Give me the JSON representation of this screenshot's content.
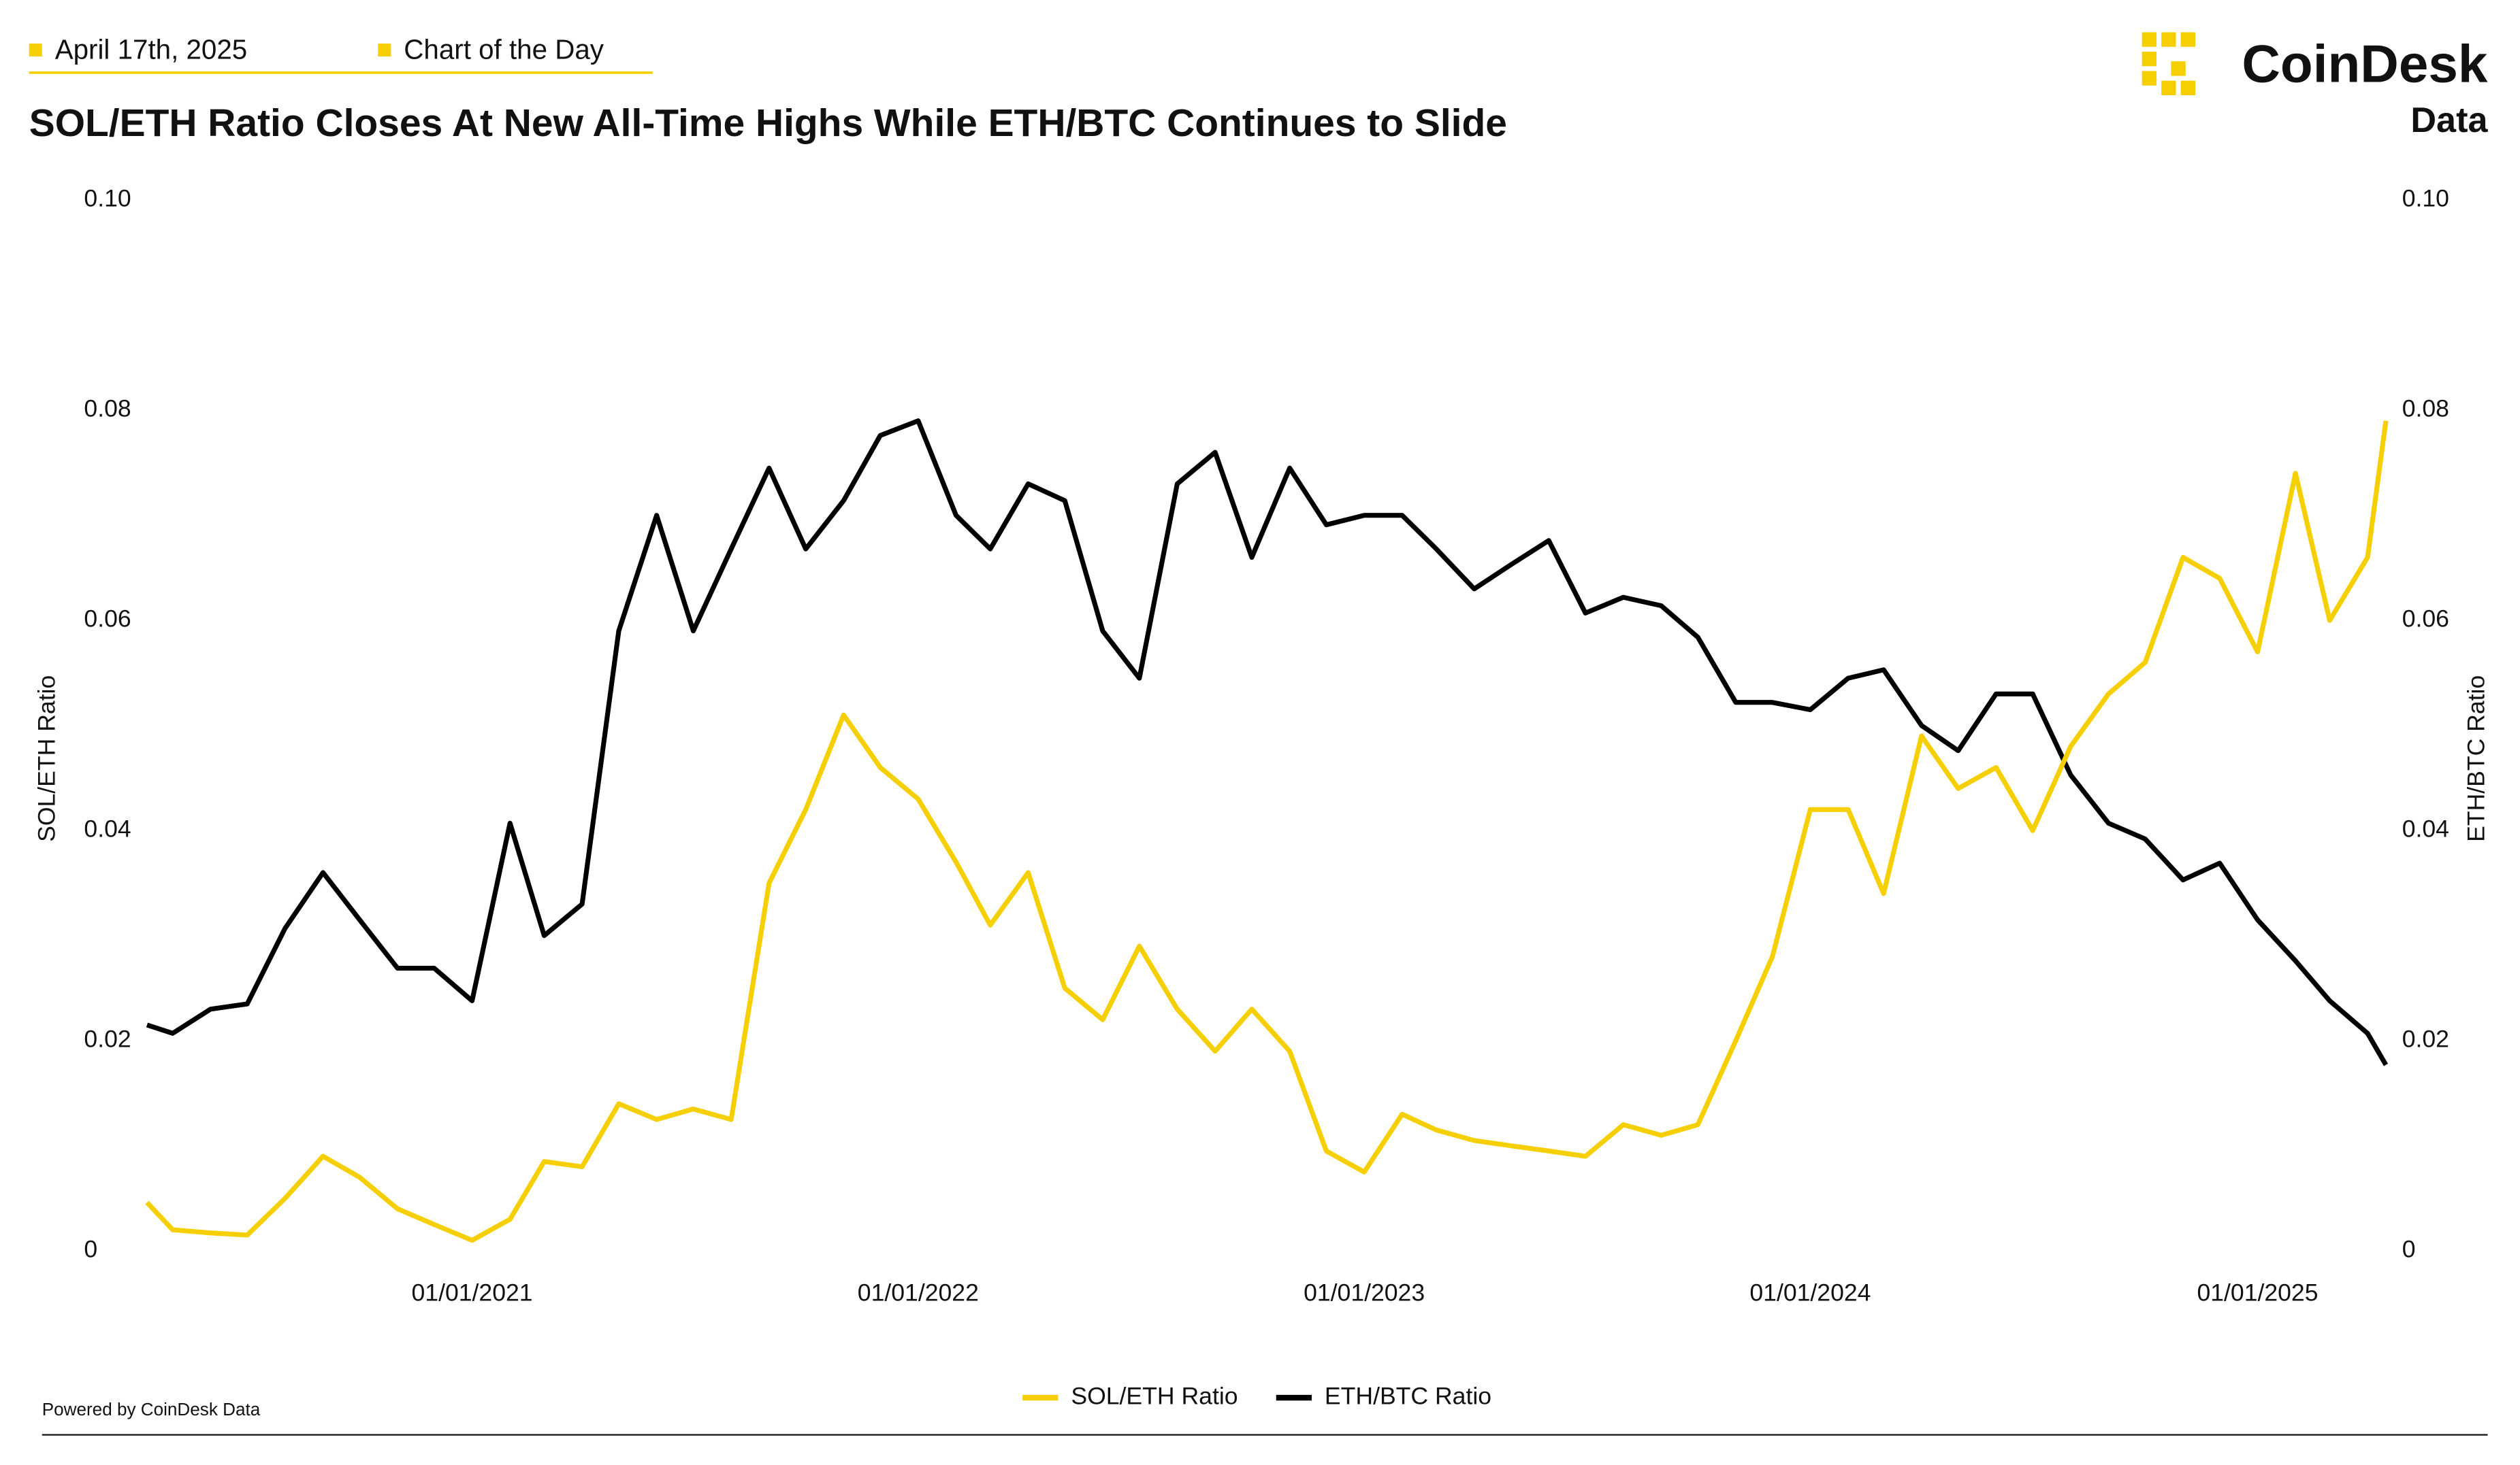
{
  "header": {
    "date": "April 17th, 2025",
    "tag": "Chart of the Day",
    "brand": "CoinDesk",
    "brand_sub": "Data"
  },
  "footer": "Powered by CoinDesk Data",
  "chart_data": {
    "type": "line",
    "title": "SOL/ETH Ratio Closes At New All-Time Highs While ETH/BTC Continues to Slide",
    "y_label": "SOL/ETH Ratio",
    "y2_label": "ETH/BTC Ratio",
    "x": [
      "2020-04-10",
      "2020-05-01",
      "2020-06-01",
      "2020-07-01",
      "2020-08-01",
      "2020-09-01",
      "2020-10-01",
      "2020-11-01",
      "2020-12-01",
      "2021-01-01",
      "2021-02-01",
      "2021-03-01",
      "2021-04-01",
      "2021-05-01",
      "2021-06-01",
      "2021-07-01",
      "2021-08-01",
      "2021-09-01",
      "2021-10-01",
      "2021-11-01",
      "2021-12-01",
      "2022-01-01",
      "2022-02-01",
      "2022-03-01",
      "2022-04-01",
      "2022-05-01",
      "2022-06-01",
      "2022-07-01",
      "2022-08-01",
      "2022-09-01",
      "2022-10-01",
      "2022-11-01",
      "2022-12-01",
      "2023-01-01",
      "2023-02-01",
      "2023-03-01",
      "2023-04-01",
      "2023-05-01",
      "2023-06-01",
      "2023-07-01",
      "2023-08-01",
      "2023-09-01",
      "2023-10-01",
      "2023-11-01",
      "2023-12-01",
      "2024-01-01",
      "2024-02-01",
      "2024-03-01",
      "2024-04-01",
      "2024-05-01",
      "2024-06-01",
      "2024-07-01",
      "2024-08-01",
      "2024-09-01",
      "2024-10-01",
      "2024-11-01",
      "2024-12-01",
      "2025-01-01",
      "2025-02-01",
      "2025-03-01",
      "2025-04-01",
      "2025-04-16"
    ],
    "series": [
      {
        "name": "SOL/ETH Ratio",
        "color": "#f5cf00",
        "axis": "y",
        "values": [
          0.0046,
          0.002,
          0.0017,
          0.0015,
          0.005,
          0.009,
          0.007,
          0.004,
          0.0025,
          0.001,
          0.003,
          0.0085,
          0.008,
          0.014,
          0.0125,
          0.0135,
          0.0125,
          0.035,
          0.042,
          0.051,
          0.046,
          0.043,
          0.037,
          0.031,
          0.036,
          0.025,
          0.022,
          0.029,
          0.023,
          0.019,
          0.023,
          0.019,
          0.0095,
          0.0075,
          0.013,
          0.0115,
          0.0105,
          0.01,
          0.0095,
          0.009,
          0.012,
          0.011,
          0.012,
          0.02,
          0.028,
          0.042,
          0.042,
          0.034,
          0.049,
          0.044,
          0.046,
          0.04,
          0.048,
          0.053,
          0.056,
          0.066,
          0.064,
          0.057,
          0.074,
          0.06,
          0.066,
          0.079
        ]
      },
      {
        "name": "ETH/BTC Ratio",
        "color": "#000000",
        "axis": "y2",
        "values": [
          0.0215,
          0.0207,
          0.023,
          0.0235,
          0.0307,
          0.036,
          0.0315,
          0.0269,
          0.0269,
          0.0238,
          0.0407,
          0.03,
          0.033,
          0.059,
          0.07,
          0.059,
          0.0668,
          0.0745,
          0.0668,
          0.0714,
          0.0776,
          0.079,
          0.07,
          0.0668,
          0.073,
          0.0714,
          0.059,
          0.0545,
          0.073,
          0.076,
          0.066,
          0.0745,
          0.0691,
          0.07,
          0.07,
          0.0668,
          0.063,
          0.0653,
          0.0676,
          0.0607,
          0.0622,
          0.0614,
          0.0584,
          0.0522,
          0.0522,
          0.0515,
          0.0545,
          0.0553,
          0.05,
          0.0476,
          0.053,
          0.053,
          0.0453,
          0.0407,
          0.0392,
          0.0353,
          0.0369,
          0.0315,
          0.0276,
          0.0238,
          0.0207,
          0.0177
        ]
      }
    ],
    "xlim": [
      "2020-04-10",
      "2025-04-16"
    ],
    "xticks": [
      {
        "value": "2021-01-01",
        "label": "01/01/2021"
      },
      {
        "value": "2022-01-01",
        "label": "01/01/2022"
      },
      {
        "value": "2023-01-01",
        "label": "01/01/2023"
      },
      {
        "value": "2024-01-01",
        "label": "01/01/2024"
      },
      {
        "value": "2025-01-01",
        "label": "01/01/2025"
      }
    ],
    "ylim": [
      0,
      0.1
    ],
    "yticks": [
      0,
      0.02,
      0.04,
      0.06,
      0.08,
      {
        "value": 0.1,
        "label": "0.10"
      }
    ],
    "y2lim": [
      0,
      0.1
    ],
    "y2ticks": [
      0,
      0.02,
      0.04,
      0.06,
      0.08,
      {
        "value": 0.1,
        "label": "0.10"
      }
    ],
    "grid": false,
    "legend": "bottom"
  }
}
